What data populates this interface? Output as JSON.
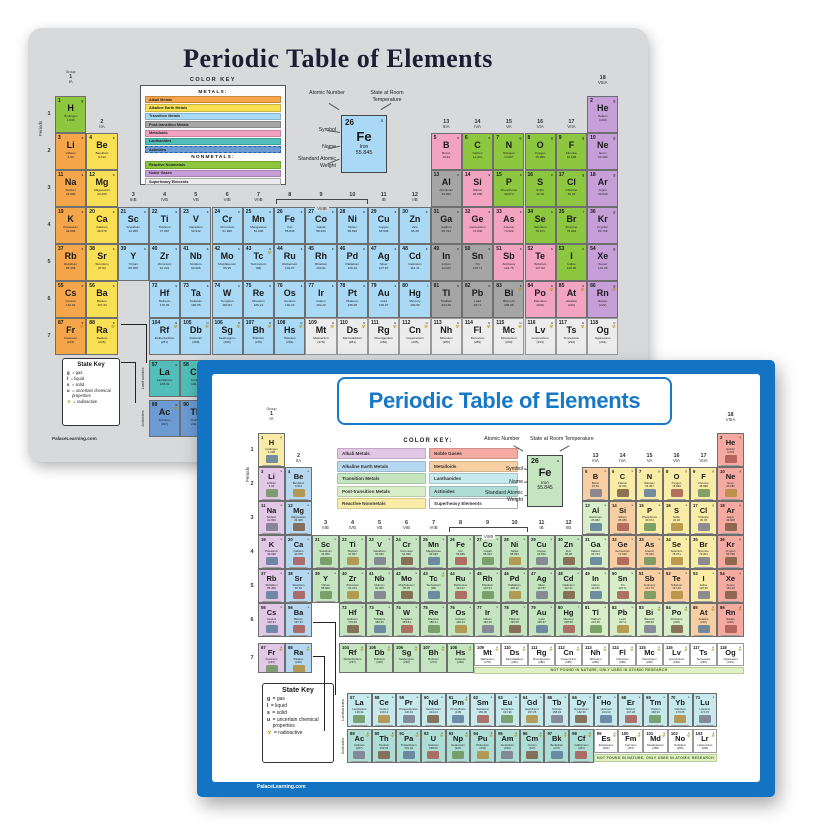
{
  "shared": {
    "group_word": "Group",
    "periods_word": "Periods",
    "groups": [
      [
        "1",
        "IA"
      ],
      [
        "2",
        "IIA"
      ],
      [
        "3",
        "IIIB"
      ],
      [
        "4",
        "IVB"
      ],
      [
        "5",
        "VB"
      ],
      [
        "6",
        "VIB"
      ],
      [
        "7",
        "VIIB"
      ],
      [
        "8",
        ""
      ],
      [
        "9",
        ""
      ],
      [
        "10",
        ""
      ],
      [
        "11",
        "IB"
      ],
      [
        "12",
        "IIB"
      ],
      [
        "13",
        "IIIA"
      ],
      [
        "14",
        "IVA"
      ],
      [
        "15",
        "VA"
      ],
      [
        "16",
        "VIA"
      ],
      [
        "17",
        "VIIA"
      ],
      [
        "18",
        "VIIIA"
      ]
    ],
    "viiib_label": "VIIIB",
    "lanthanides_label": "Lanthanides",
    "actinides_label": "Actinides",
    "legend": {
      "atomic_number_label": "Atomic Number",
      "state_label": "State at Room Temperature",
      "symbol_label": "Symbol",
      "name_label": "Name",
      "weight_label": "Standard Atomic Weight",
      "example": {
        "number": "26",
        "state": "s",
        "symbol": "Fe",
        "name": "Iron",
        "weight": "55.845"
      }
    },
    "state_key": {
      "title": "State Key",
      "items": [
        {
          "k": "g",
          "t": "= gas"
        },
        {
          "k": "l",
          "t": "= liquid"
        },
        {
          "k": "s",
          "t": "= solid"
        },
        {
          "k": "u",
          "t": "= uncertain chemical properties"
        },
        {
          "k": "☢",
          "t": "= radioactive"
        }
      ]
    },
    "footer": "PalaceLearning.com"
  },
  "back_poster": {
    "title": "Periodic Table of Elements",
    "bg_color": "#d7d9db",
    "color_key": {
      "title": "COLOR KEY",
      "metals_label": "METALS:",
      "nonmetals_label": "NONMETALS:",
      "metals": [
        {
          "label": "Alkali Metals",
          "color": "#f5a54a"
        },
        {
          "label": "Alkaline Earth Metals",
          "color": "#f8df54"
        },
        {
          "label": "Transition Metals",
          "color": "#a9d9f5"
        },
        {
          "label": "Post-transition Metals",
          "color": "#a5a5a5"
        },
        {
          "label": "Metalloids",
          "color": "#f2a3c0"
        },
        {
          "label": "Lanthanides",
          "color": "#52bdb9"
        },
        {
          "label": "Actinides",
          "color": "#6b9bd2",
          "dashed": true
        }
      ],
      "nonmetals": [
        {
          "label": "Reactive Nonmetals",
          "color": "#8dc63f"
        },
        {
          "label": "Noble Gases",
          "color": "#c79fd8"
        },
        {
          "label": "Superheavy Elements",
          "color": "#ececec"
        }
      ]
    },
    "category_colors": {
      "a": "#f5a54a",
      "e": "#f8df54",
      "t": "#a9d9f5",
      "p": "#a5a5a5",
      "m": "#f2a3c0",
      "r": "#8dc63f",
      "n": "#c79fd8",
      "l": "#52bdb9",
      "c": "#6b9bd2",
      "s": "#ececec"
    },
    "category_overrides": {}
  },
  "front_poster": {
    "title": "Periodic Table of Elements",
    "accent_color": "#1474c4",
    "note": "NOT FOUND IN NATURE, ONLY USED IN ATOMIC RESEARCH",
    "color_key": {
      "title": "COLOR KEY:",
      "left": [
        {
          "label": "Alkali Metals",
          "color": "#e2c7e6"
        },
        {
          "label": "Alkaline Earth Metals",
          "color": "#b5d7f0"
        },
        {
          "label": "Transition Metals",
          "color": "#c4e5c0"
        },
        {
          "label": "Post-transition Metals",
          "color": "#d8eec8"
        },
        {
          "label": "Reactive Nonmetals",
          "color": "#f9eca6"
        }
      ],
      "right": [
        {
          "label": "Noble Gases",
          "color": "#f4a9a1"
        },
        {
          "label": "Metalloids",
          "color": "#f8cfa2"
        },
        {
          "label": "Lanthanides",
          "color": "#c6e9ee"
        },
        {
          "label": "Actinides",
          "color": "#aeddd6"
        },
        {
          "label": "Superheavy Elements",
          "color": "#ffffff"
        }
      ]
    },
    "category_colors": {
      "a": "#e2c7e6",
      "e": "#b5d7f0",
      "t": "#c4e5c0",
      "p": "#d8eec8",
      "m": "#f8cfa2",
      "r": "#f9eca6",
      "n": "#f4a9a1",
      "l": "#c6e9ee",
      "c": "#aeddd6",
      "s": "#ffffff"
    },
    "category_overrides": {
      "84": "p",
      "99": "s",
      "100": "s",
      "101": "s",
      "102": "s",
      "103": "s"
    }
  },
  "element_fields": [
    "number",
    "symbol",
    "name",
    "mass",
    "category",
    "state",
    "radioactive"
  ],
  "elements": [
    [
      1,
      "H",
      "Hydrogen",
      "1.008",
      "r",
      "g",
      0
    ],
    [
      2,
      "He",
      "Helium",
      "4.003",
      "n",
      "g",
      0
    ],
    [
      3,
      "Li",
      "Lithium",
      "6.94",
      "a",
      "s",
      0
    ],
    [
      4,
      "Be",
      "Beryllium",
      "9.012",
      "e",
      "s",
      0
    ],
    [
      5,
      "B",
      "Boron",
      "10.81",
      "m",
      "s",
      0
    ],
    [
      6,
      "C",
      "Carbon",
      "12.011",
      "r",
      "s",
      0
    ],
    [
      7,
      "N",
      "Nitrogen",
      "14.007",
      "r",
      "g",
      0
    ],
    [
      8,
      "O",
      "Oxygen",
      "15.999",
      "r",
      "g",
      0
    ],
    [
      9,
      "F",
      "Fluorine",
      "18.998",
      "r",
      "g",
      0
    ],
    [
      10,
      "Ne",
      "Neon",
      "20.180",
      "n",
      "g",
      0
    ],
    [
      11,
      "Na",
      "Sodium",
      "22.990",
      "a",
      "s",
      0
    ],
    [
      12,
      "Mg",
      "Magnesium",
      "24.305",
      "e",
      "s",
      0
    ],
    [
      13,
      "Al",
      "Aluminum",
      "26.982",
      "p",
      "s",
      0
    ],
    [
      14,
      "Si",
      "Silicon",
      "28.086",
      "m",
      "s",
      0
    ],
    [
      15,
      "P",
      "Phosphorus",
      "30.974",
      "r",
      "s",
      0
    ],
    [
      16,
      "S",
      "Sulfur",
      "32.06",
      "r",
      "s",
      0
    ],
    [
      17,
      "Cl",
      "Chlorine",
      "35.45",
      "r",
      "g",
      0
    ],
    [
      18,
      "Ar",
      "Argon",
      "39.948",
      "n",
      "g",
      0
    ],
    [
      19,
      "K",
      "Potassium",
      "39.098",
      "a",
      "s",
      0
    ],
    [
      20,
      "Ca",
      "Calcium",
      "40.078",
      "e",
      "s",
      0
    ],
    [
      21,
      "Sc",
      "Scandium",
      "44.956",
      "t",
      "s",
      0
    ],
    [
      22,
      "Ti",
      "Titanium",
      "47.867",
      "t",
      "s",
      0
    ],
    [
      23,
      "V",
      "Vanadium",
      "50.942",
      "t",
      "s",
      0
    ],
    [
      24,
      "Cr",
      "Chromium",
      "51.996",
      "t",
      "s",
      0
    ],
    [
      25,
      "Mn",
      "Manganese",
      "54.938",
      "t",
      "s",
      0
    ],
    [
      26,
      "Fe",
      "Iron",
      "55.845",
      "t",
      "s",
      0
    ],
    [
      27,
      "Co",
      "Cobalt",
      "58.933",
      "t",
      "s",
      0
    ],
    [
      28,
      "Ni",
      "Nickel",
      "58.693",
      "t",
      "s",
      0
    ],
    [
      29,
      "Cu",
      "Copper",
      "63.546",
      "t",
      "s",
      0
    ],
    [
      30,
      "Zn",
      "Zinc",
      "65.38",
      "t",
      "s",
      0
    ],
    [
      31,
      "Ga",
      "Gallium",
      "69.723",
      "p",
      "s",
      0
    ],
    [
      32,
      "Ge",
      "Germanium",
      "72.630",
      "m",
      "s",
      0
    ],
    [
      33,
      "As",
      "Arsenic",
      "74.922",
      "m",
      "s",
      0
    ],
    [
      34,
      "Se",
      "Selenium",
      "78.971",
      "r",
      "s",
      0
    ],
    [
      35,
      "Br",
      "Bromine",
      "79.904",
      "r",
      "l",
      0
    ],
    [
      36,
      "Kr",
      "Krypton",
      "83.798",
      "n",
      "g",
      0
    ],
    [
      37,
      "Rb",
      "Rubidium",
      "85.468",
      "a",
      "s",
      0
    ],
    [
      38,
      "Sr",
      "Strontium",
      "87.62",
      "e",
      "s",
      0
    ],
    [
      39,
      "Y",
      "Yttrium",
      "88.906",
      "t",
      "s",
      0
    ],
    [
      40,
      "Zr",
      "Zirconium",
      "91.224",
      "t",
      "s",
      0
    ],
    [
      41,
      "Nb",
      "Niobium",
      "92.906",
      "t",
      "s",
      0
    ],
    [
      42,
      "Mo",
      "Molybdenum",
      "95.95",
      "t",
      "s",
      0
    ],
    [
      43,
      "Tc",
      "Technetium",
      "(98)",
      "t",
      "s",
      1
    ],
    [
      44,
      "Ru",
      "Ruthenium",
      "101.07",
      "t",
      "s",
      0
    ],
    [
      45,
      "Rh",
      "Rhodium",
      "102.91",
      "t",
      "s",
      0
    ],
    [
      46,
      "Pd",
      "Palladium",
      "106.42",
      "t",
      "s",
      0
    ],
    [
      47,
      "Ag",
      "Silver",
      "107.87",
      "t",
      "s",
      0
    ],
    [
      48,
      "Cd",
      "Cadmium",
      "112.41",
      "t",
      "s",
      0
    ],
    [
      49,
      "In",
      "Indium",
      "114.82",
      "p",
      "s",
      0
    ],
    [
      50,
      "Sn",
      "Tin",
      "118.71",
      "p",
      "s",
      0
    ],
    [
      51,
      "Sb",
      "Antimony",
      "121.76",
      "m",
      "s",
      0
    ],
    [
      52,
      "Te",
      "Tellurium",
      "127.60",
      "m",
      "s",
      0
    ],
    [
      53,
      "I",
      "Iodine",
      "126.90",
      "r",
      "s",
      0
    ],
    [
      54,
      "Xe",
      "Xenon",
      "131.29",
      "n",
      "g",
      0
    ],
    [
      55,
      "Cs",
      "Cesium",
      "132.91",
      "a",
      "s",
      0
    ],
    [
      56,
      "Ba",
      "Barium",
      "137.33",
      "e",
      "s",
      0
    ],
    [
      57,
      "La",
      "Lanthanum",
      "138.91",
      "l",
      "s",
      0
    ],
    [
      58,
      "Ce",
      "Cerium",
      "140.12",
      "l",
      "s",
      0
    ],
    [
      59,
      "Pr",
      "Praseodymium",
      "140.91",
      "l",
      "s",
      0
    ],
    [
      60,
      "Nd",
      "Neodymium",
      "144.24",
      "l",
      "s",
      0
    ],
    [
      61,
      "Pm",
      "Promethium",
      "(145)",
      "l",
      "s",
      1
    ],
    [
      62,
      "Sm",
      "Samarium",
      "150.36",
      "l",
      "s",
      0
    ],
    [
      63,
      "Eu",
      "Europium",
      "151.96",
      "l",
      "s",
      0
    ],
    [
      64,
      "Gd",
      "Gadolinium",
      "157.25",
      "l",
      "s",
      0
    ],
    [
      65,
      "Tb",
      "Terbium",
      "158.93",
      "l",
      "s",
      0
    ],
    [
      66,
      "Dy",
      "Dysprosium",
      "162.50",
      "l",
      "s",
      0
    ],
    [
      67,
      "Ho",
      "Holmium",
      "164.93",
      "l",
      "s",
      0
    ],
    [
      68,
      "Er",
      "Erbium",
      "167.26",
      "l",
      "s",
      0
    ],
    [
      69,
      "Tm",
      "Thulium",
      "168.93",
      "l",
      "s",
      0
    ],
    [
      70,
      "Yb",
      "Ytterbium",
      "173.05",
      "l",
      "s",
      0
    ],
    [
      71,
      "Lu",
      "Lutetium",
      "174.97",
      "l",
      "s",
      0
    ],
    [
      72,
      "Hf",
      "Hafnium",
      "178.49",
      "t",
      "s",
      0
    ],
    [
      73,
      "Ta",
      "Tantalum",
      "180.95",
      "t",
      "s",
      0
    ],
    [
      74,
      "W",
      "Tungsten",
      "183.84",
      "t",
      "s",
      0
    ],
    [
      75,
      "Re",
      "Rhenium",
      "186.21",
      "t",
      "s",
      0
    ],
    [
      76,
      "Os",
      "Osmium",
      "190.23",
      "t",
      "s",
      0
    ],
    [
      77,
      "Ir",
      "Iridium",
      "192.22",
      "t",
      "s",
      0
    ],
    [
      78,
      "Pt",
      "Platinum",
      "195.08",
      "t",
      "s",
      0
    ],
    [
      79,
      "Au",
      "Gold",
      "196.97",
      "t",
      "s",
      0
    ],
    [
      80,
      "Hg",
      "Mercury",
      "200.59",
      "t",
      "l",
      0
    ],
    [
      81,
      "Tl",
      "Thallium",
      "204.38",
      "p",
      "s",
      0
    ],
    [
      82,
      "Pb",
      "Lead",
      "207.2",
      "p",
      "s",
      0
    ],
    [
      83,
      "Bi",
      "Bismuth",
      "208.98",
      "p",
      "s",
      1
    ],
    [
      84,
      "Po",
      "Polonium",
      "(209)",
      "m",
      "s",
      1
    ],
    [
      85,
      "At",
      "Astatine",
      "(210)",
      "m",
      "s",
      1
    ],
    [
      86,
      "Rn",
      "Radon",
      "(222)",
      "n",
      "g",
      1
    ],
    [
      87,
      "Fr",
      "Francium",
      "(223)",
      "a",
      "s",
      1
    ],
    [
      88,
      "Ra",
      "Radium",
      "(226)",
      "e",
      "s",
      1
    ],
    [
      89,
      "Ac",
      "Actinium",
      "(227)",
      "c",
      "s",
      1
    ],
    [
      90,
      "Th",
      "Thorium",
      "232.04",
      "c",
      "s",
      1
    ],
    [
      91,
      "Pa",
      "Protactinium",
      "231.04",
      "c",
      "s",
      1
    ],
    [
      92,
      "U",
      "Uranium",
      "238.03",
      "c",
      "s",
      1
    ],
    [
      93,
      "Np",
      "Neptunium",
      "(237)",
      "c",
      "s",
      1
    ],
    [
      94,
      "Pu",
      "Plutonium",
      "(244)",
      "c",
      "s",
      1
    ],
    [
      95,
      "Am",
      "Americium",
      "(243)",
      "c",
      "s",
      1
    ],
    [
      96,
      "Cm",
      "Curium",
      "(247)",
      "c",
      "s",
      1
    ],
    [
      97,
      "Bk",
      "Berkelium",
      "(247)",
      "c",
      "s",
      1
    ],
    [
      98,
      "Cf",
      "Californium",
      "(251)",
      "c",
      "s",
      1
    ],
    [
      99,
      "Es",
      "Einsteinium",
      "(252)",
      "c",
      "s",
      1
    ],
    [
      100,
      "Fm",
      "Fermium",
      "(257)",
      "c",
      "s",
      1
    ],
    [
      101,
      "Md",
      "Mendelevium",
      "(258)",
      "c",
      "s",
      1
    ],
    [
      102,
      "No",
      "Nobelium",
      "(259)",
      "c",
      "s",
      1
    ],
    [
      103,
      "Lr",
      "Lawrencium",
      "(266)",
      "c",
      "s",
      1
    ],
    [
      104,
      "Rf",
      "Rutherfordium",
      "(267)",
      "t",
      "u",
      1
    ],
    [
      105,
      "Db",
      "Dubnium",
      "(268)",
      "t",
      "u",
      1
    ],
    [
      106,
      "Sg",
      "Seaborgium",
      "(269)",
      "t",
      "u",
      1
    ],
    [
      107,
      "Bh",
      "Bohrium",
      "(270)",
      "t",
      "u",
      1
    ],
    [
      108,
      "Hs",
      "Hassium",
      "(269)",
      "t",
      "u",
      1
    ],
    [
      109,
      "Mt",
      "Meitnerium",
      "(278)",
      "s",
      "u",
      1
    ],
    [
      110,
      "Ds",
      "Darmstadtium",
      "(281)",
      "s",
      "u",
      1
    ],
    [
      111,
      "Rg",
      "Roentgenium",
      "(282)",
      "s",
      "u",
      1
    ],
    [
      112,
      "Cn",
      "Copernicium",
      "(285)",
      "s",
      "u",
      1
    ],
    [
      113,
      "Nh",
      "Nihonium",
      "(286)",
      "s",
      "u",
      1
    ],
    [
      114,
      "Fl",
      "Flerovium",
      "(289)",
      "s",
      "u",
      1
    ],
    [
      115,
      "Mc",
      "Moscovium",
      "(290)",
      "s",
      "u",
      1
    ],
    [
      116,
      "Lv",
      "Livermorium",
      "(293)",
      "s",
      "u",
      1
    ],
    [
      117,
      "Ts",
      "Tennessine",
      "(294)",
      "s",
      "u",
      1
    ],
    [
      118,
      "Og",
      "Oganesson",
      "(294)",
      "s",
      "u",
      1
    ]
  ]
}
